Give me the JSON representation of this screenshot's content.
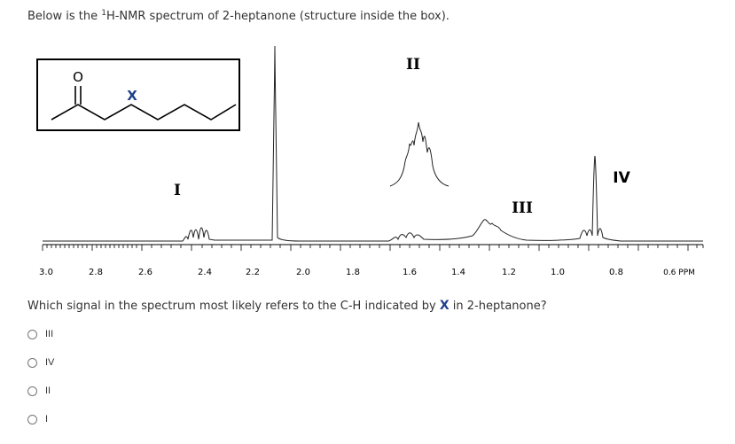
{
  "intro": {
    "prefix": "Below is the ",
    "superscript": "1",
    "suffix": "H-NMR spectrum of 2-heptanone (structure inside the box)."
  },
  "structure": {
    "oxygen_label": "O",
    "x_label": "X"
  },
  "spectrum": {
    "signal_labels": [
      "I",
      "II",
      "III",
      "IV"
    ],
    "axis_ticks": [
      "3.0",
      "2.8",
      "2.6",
      "2.4",
      "2.2",
      "2.0",
      "1.8",
      "1.6",
      "1.4",
      "1.2",
      "1.0",
      "0.8",
      "0.6 PPM"
    ]
  },
  "question": {
    "before": "Which signal in the spectrum most likely refers to the C-H indicated by ",
    "marker": "X",
    "after": " in 2-heptanone?"
  },
  "options": [
    {
      "label": "III"
    },
    {
      "label": "IV"
    },
    {
      "label": "II"
    },
    {
      "label": "I"
    }
  ],
  "colors": {
    "accent": "#1e3f8a",
    "text": "#333333"
  }
}
